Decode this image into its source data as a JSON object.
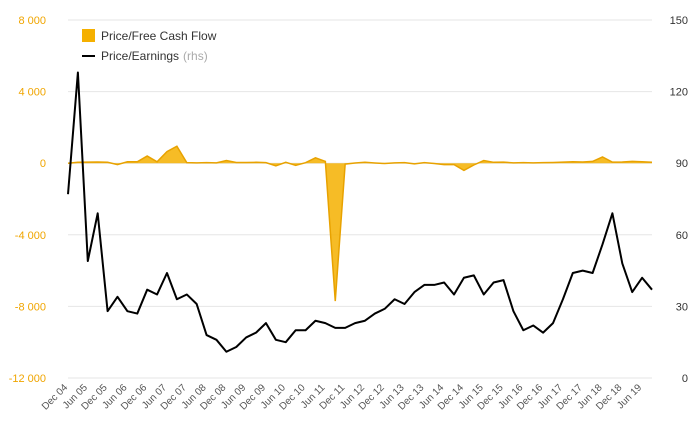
{
  "chart_data": {
    "type": "line",
    "title": "",
    "legend": {
      "placement": "top-left",
      "entries": [
        {
          "series": "pfcf",
          "label": "Price/Free Cash Flow",
          "sub": ""
        },
        {
          "series": "pe",
          "label": "Price/Earnings",
          "sub": "(rhs)"
        }
      ]
    },
    "y_left": {
      "min": -12000,
      "max": 8000,
      "ticks": [
        8000,
        4000,
        0,
        -4000,
        -8000,
        -12000
      ],
      "tick_labels": [
        "8 000",
        "4 000",
        "0",
        "-4 000",
        "-8 000",
        "-12 000"
      ],
      "color": "#f0a500"
    },
    "y_right": {
      "min": 0,
      "max": 150,
      "ticks": [
        150,
        120,
        90,
        60,
        30,
        0
      ],
      "tick_labels": [
        "150",
        "120",
        "90",
        "60",
        "30",
        "0"
      ]
    },
    "grid": true,
    "x_tick_labels": [
      "Dec 04",
      "Jun 05",
      "Dec 05",
      "Jun 06",
      "Dec 06",
      "Jun 07",
      "Dec 07",
      "Jun 08",
      "Dec 08",
      "Jun 09",
      "Dec 09",
      "Jun 10",
      "Dec 10",
      "Jun 11",
      "Dec 11",
      "Jun 12",
      "Dec 12",
      "Jun 13",
      "Dec 13",
      "Jun 14",
      "Dec 14",
      "Jun 15",
      "Dec 15",
      "Jun 16",
      "Dec 16",
      "Jun 17",
      "Dec 17",
      "Jun 18",
      "Dec 18",
      "Jun 19"
    ],
    "x_tick_positions": [
      0,
      2,
      4,
      6,
      8,
      10,
      12,
      14,
      16,
      18,
      20,
      22,
      24,
      26,
      28,
      30,
      32,
      34,
      36,
      38,
      40,
      42,
      44,
      46,
      48,
      50,
      52,
      54,
      56,
      58
    ],
    "x_start": 0,
    "x_end": 59,
    "series": [
      {
        "id": "pfcf",
        "name": "Price/Free Cash Flow",
        "axis": "left",
        "type": "area",
        "color": "#f5b000",
        "values": [
          0,
          50,
          60,
          70,
          50,
          -80,
          80,
          80,
          400,
          80,
          650,
          950,
          30,
          20,
          30,
          20,
          150,
          40,
          40,
          50,
          30,
          -150,
          50,
          -120,
          30,
          300,
          100,
          -7700,
          -50,
          10,
          50,
          10,
          -20,
          20,
          30,
          -40,
          30,
          -20,
          -80,
          -80,
          -400,
          -100,
          150,
          50,
          60,
          20,
          30,
          20,
          30,
          40,
          60,
          80,
          70,
          100,
          350,
          60,
          70,
          100,
          80,
          50
        ]
      },
      {
        "id": "pe",
        "name": "Price/Earnings",
        "axis": "right",
        "type": "line",
        "color": "#000000",
        "values": [
          77,
          128,
          49,
          69,
          28,
          34,
          28,
          27,
          37,
          35,
          44,
          33,
          35,
          31,
          18,
          16,
          11,
          13,
          17,
          19,
          23,
          16,
          15,
          20,
          20,
          24,
          23,
          21,
          21,
          23,
          24,
          27,
          29,
          33,
          31,
          36,
          39,
          39,
          40,
          35,
          42,
          43,
          35,
          40,
          41,
          28,
          20,
          22,
          19,
          23,
          33,
          44,
          45,
          44,
          56,
          69,
          48,
          36,
          42,
          37
        ]
      }
    ]
  }
}
